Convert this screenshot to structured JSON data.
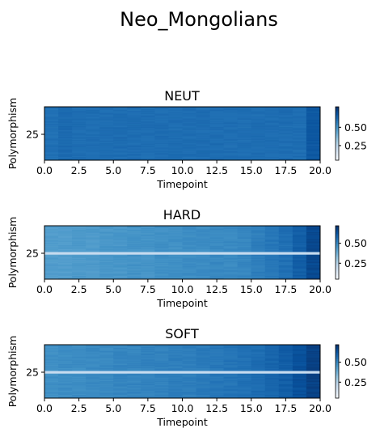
{
  "figure": {
    "title": "Neo_Mongolians"
  },
  "chart_data": [
    {
      "type": "heatmap",
      "title": "NEUT",
      "xlabel": "Timepoint",
      "ylabel": "Polymorphism",
      "xlim": [
        0,
        20
      ],
      "xticks": [
        "0.0",
        "2.5",
        "5.0",
        "7.5",
        "10.0",
        "12.5",
        "15.0",
        "17.5",
        "20.0"
      ],
      "yticks": [
        "25"
      ],
      "colormap": "Blues",
      "colorbar_ticks": [
        "0.25",
        "0.50"
      ],
      "colorbar_ticks_shown": [
        "0.25",
        "0.50"
      ],
      "colorbar_tick_values": [
        0.25,
        0.5
      ],
      "value_range": [
        0.0,
        0.8
      ],
      "colorbar_labels": [
        "0.25",
        "0.50"
      ],
      "colorbar_tick_labels": [
        "0.25",
        "0.50"
      ],
      "cbar": {
        "ticks": [
          "0.25",
          "0.50"
        ]
      },
      "column_means": [
        0.62,
        0.64,
        0.63,
        0.63,
        0.63,
        0.63,
        0.63,
        0.63,
        0.63,
        0.63,
        0.63,
        0.63,
        0.63,
        0.63,
        0.63,
        0.63,
        0.63,
        0.63,
        0.63,
        0.7
      ],
      "highlight_row": null
    },
    {
      "type": "heatmap",
      "title": "HARD",
      "xlabel": "Timepoint",
      "ylabel": "Polymorphism",
      "xlim": [
        0,
        20
      ],
      "xticks": [
        "0.0",
        "2.5",
        "5.0",
        "7.5",
        "10.0",
        "12.5",
        "15.0",
        "17.5",
        "20.0"
      ],
      "yticks": [
        "25"
      ],
      "colormap": "Blues",
      "colorbar_tick_values": [
        0.25,
        0.5
      ],
      "colorbar_tick_labels": [
        "0.25",
        "0.50"
      ],
      "value_range": [
        0.05,
        0.72
      ],
      "column_means": [
        0.44,
        0.44,
        0.45,
        0.45,
        0.46,
        0.46,
        0.47,
        0.47,
        0.48,
        0.48,
        0.49,
        0.49,
        0.5,
        0.5,
        0.51,
        0.53,
        0.55,
        0.57,
        0.62,
        0.68
      ],
      "highlight_row": 25
    },
    {
      "type": "heatmap",
      "title": "SOFT",
      "xlabel": "Timepoint",
      "ylabel": "Polymorphism",
      "xlim": [
        0,
        20
      ],
      "xticks": [
        "0.0",
        "2.5",
        "5.0",
        "7.5",
        "10.0",
        "12.5",
        "15.0",
        "17.5",
        "20.0"
      ],
      "yticks": [
        "25"
      ],
      "colormap": "Blues",
      "colorbar_tick_values": [
        0.25,
        0.5
      ],
      "colorbar_tick_labels": [
        "0.25",
        "0.50"
      ],
      "value_range": [
        0.05,
        0.72
      ],
      "column_means": [
        0.48,
        0.49,
        0.49,
        0.5,
        0.5,
        0.51,
        0.51,
        0.52,
        0.52,
        0.53,
        0.53,
        0.54,
        0.55,
        0.56,
        0.57,
        0.58,
        0.6,
        0.62,
        0.66,
        0.7
      ],
      "highlight_row": 25
    }
  ]
}
